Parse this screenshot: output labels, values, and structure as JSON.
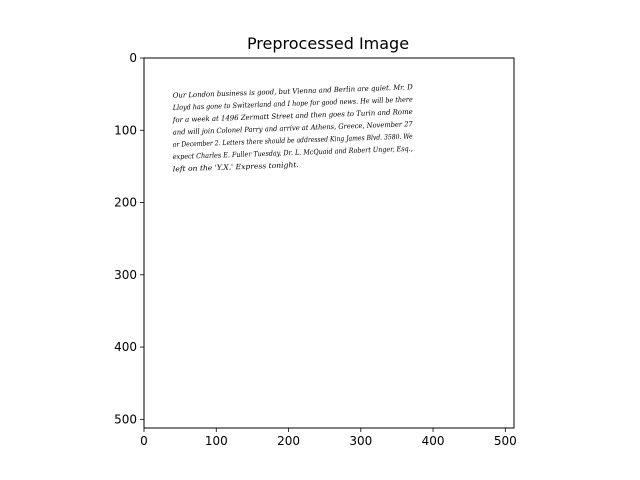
{
  "chart_data": {
    "type": "image",
    "title": "Preprocessed Image",
    "xlim": [
      0,
      512
    ],
    "ylim": [
      512,
      0
    ],
    "y_inverted": true,
    "x_ticks": [
      0,
      100,
      200,
      300,
      400,
      500
    ],
    "y_ticks": [
      0,
      100,
      200,
      300,
      400,
      500
    ],
    "grid": false,
    "image_content": {
      "background": "#ffffff",
      "ink": "#000000",
      "handwritten_lines": [
        {
          "text": "Our London business is good, but Vienna and Berlin are quiet. Mr. D",
          "x": 40,
          "y": 55
        },
        {
          "text": "Lloyd has gone to Switzerland and I hope for good news. He will be there",
          "x": 40,
          "y": 72
        },
        {
          "text": "for a week at 1496 Zermatt Street and then goes to Turin and Rome",
          "x": 40,
          "y": 89
        },
        {
          "text": "and will join Colonel Parry and arrive at Athens, Greece, November 27",
          "x": 40,
          "y": 106
        },
        {
          "text": "or December 2. Letters there should be addressed King James Blvd. 3580. We",
          "x": 40,
          "y": 123
        },
        {
          "text": "expect Charles E. Fuller Tuesday. Dr. L. McQuaid and Robert Unger, Esq.,",
          "x": 40,
          "y": 140
        },
        {
          "text": "left on the 'Y.X.' Express tonight.",
          "x": 40,
          "y": 157
        }
      ]
    }
  }
}
